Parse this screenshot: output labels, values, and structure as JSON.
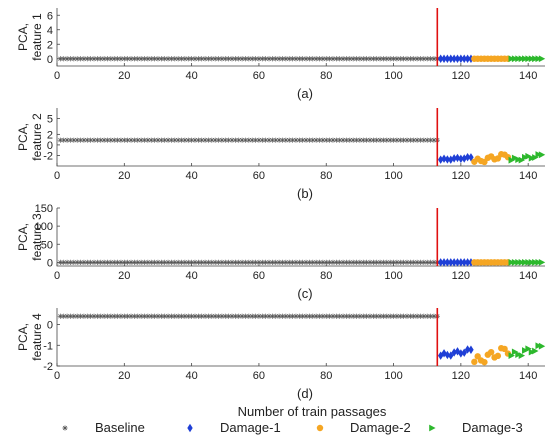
{
  "colors": {
    "baseline": "#555555",
    "damage1": "#1f3fd6",
    "damage2": "#f5a623",
    "damage3": "#2db82d",
    "divider": "#e01010",
    "axis": "#444444"
  },
  "shared": {
    "xlabel": "Number of  train passages",
    "xlim": [
      0,
      145
    ],
    "xticks": [
      "0",
      "20",
      "40",
      "60",
      "80",
      "100",
      "120",
      "140"
    ],
    "divider_x": 113,
    "counts": {
      "baseline": 113,
      "damage1": 10,
      "damage2": 11,
      "damage3": 10
    }
  },
  "legend": {
    "items": [
      {
        "label": "Baseline",
        "marker": "star"
      },
      {
        "label": "Damage-1",
        "marker": "diamond"
      },
      {
        "label": "Damage-2",
        "marker": "circle"
      },
      {
        "label": "Damage-3",
        "marker": "triangle"
      }
    ]
  },
  "chart_data": [
    {
      "type": "scatter",
      "caption": "(a)",
      "ylabel": [
        "PCA,",
        "feature 1"
      ],
      "ylim": [
        -1,
        7
      ],
      "yticks": [
        "0",
        "2",
        "4",
        "6"
      ],
      "series": [
        {
          "name": "Baseline",
          "x": [
            1,
            113
          ],
          "y": [
            0,
            0
          ]
        },
        {
          "name": "Damage-1",
          "x": [
            114,
            123
          ],
          "y": [
            0,
            0
          ]
        },
        {
          "name": "Damage-2",
          "x": [
            124,
            134
          ],
          "y": [
            0,
            0
          ]
        },
        {
          "name": "Damage-3",
          "x": [
            135,
            144
          ],
          "y": [
            0,
            0
          ]
        }
      ]
    },
    {
      "type": "scatter",
      "caption": "(b)",
      "ylabel": [
        "PCA,",
        "feature 2"
      ],
      "ylim": [
        -4,
        7
      ],
      "yticks": [
        "5",
        "2",
        "0",
        "-2"
      ],
      "series": [
        {
          "name": "Baseline",
          "x": [
            1,
            113
          ],
          "y": [
            0.9,
            0.9
          ]
        },
        {
          "name": "Damage-1",
          "x": [
            114,
            123
          ],
          "y": [
            -2.8,
            -2.4
          ]
        },
        {
          "name": "Damage-2",
          "x": [
            124,
            134
          ],
          "y": [
            -3.2,
            -1.9
          ]
        },
        {
          "name": "Damage-3",
          "x": [
            135,
            144
          ],
          "y": [
            -2.9,
            -2.0
          ]
        }
      ]
    },
    {
      "type": "scatter",
      "caption": "(c)",
      "ylabel": [
        "PCA,",
        "feature 3"
      ],
      "ylim": [
        -10,
        150
      ],
      "yticks": [
        "0",
        "50",
        "100",
        "150"
      ],
      "series": [
        {
          "name": "Baseline",
          "x": [
            1,
            113
          ],
          "y": [
            0,
            0
          ]
        },
        {
          "name": "Damage-1",
          "x": [
            114,
            123
          ],
          "y": [
            0,
            0
          ]
        },
        {
          "name": "Damage-2",
          "x": [
            124,
            134
          ],
          "y": [
            0,
            0
          ]
        },
        {
          "name": "Damage-3",
          "x": [
            135,
            144
          ],
          "y": [
            0,
            0
          ]
        }
      ]
    },
    {
      "type": "scatter",
      "caption": "(d)",
      "ylabel": [
        "PCA,",
        "feature 4"
      ],
      "ylim": [
        -2,
        0.8
      ],
      "yticks": [
        "0",
        "-1",
        "-2"
      ],
      "series": [
        {
          "name": "Baseline",
          "x": [
            1,
            113
          ],
          "y": [
            0.4,
            0.4
          ]
        },
        {
          "name": "Damage-1",
          "x": [
            114,
            123
          ],
          "y": [
            -1.5,
            -1.25
          ]
        },
        {
          "name": "Damage-2",
          "x": [
            124,
            134
          ],
          "y": [
            -1.8,
            -1.2
          ]
        },
        {
          "name": "Damage-3",
          "x": [
            135,
            144
          ],
          "y": [
            -1.5,
            -1.1
          ]
        }
      ]
    }
  ]
}
